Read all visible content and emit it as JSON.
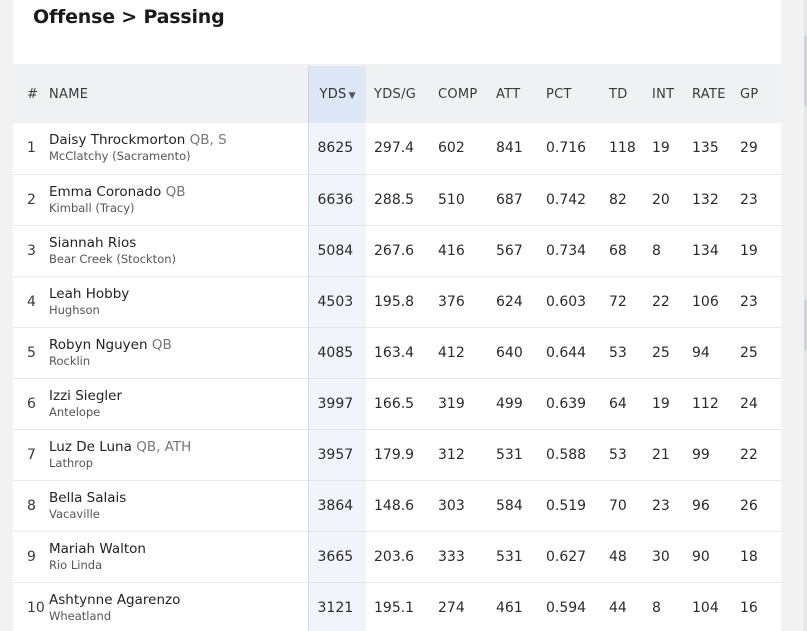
{
  "header": {
    "title": "Offense > Passing"
  },
  "table": {
    "columns": {
      "rank": "#",
      "name": "NAME",
      "yds": "YDS",
      "yds_sort_icon": "▼",
      "ydsg": "YDS/G",
      "comp": "COMP",
      "att": "ATT",
      "pct": "PCT",
      "td": "TD",
      "int": "INT",
      "rate": "RATE",
      "gp": "GP"
    },
    "rows": [
      {
        "rank": "1",
        "name": "Daisy Throckmorton",
        "pos": "QB, S",
        "school": "McClatchy (Sacramento)",
        "yds": "8625",
        "ydsg": "297.4",
        "comp": "602",
        "att": "841",
        "pct": "0.716",
        "td": "118",
        "int": "19",
        "rate": "135",
        "gp": "29"
      },
      {
        "rank": "2",
        "name": "Emma Coronado",
        "pos": "QB",
        "school": "Kimball (Tracy)",
        "yds": "6636",
        "ydsg": "288.5",
        "comp": "510",
        "att": "687",
        "pct": "0.742",
        "td": "82",
        "int": "20",
        "rate": "132",
        "gp": "23"
      },
      {
        "rank": "3",
        "name": "Siannah Rios",
        "pos": "",
        "school": "Bear Creek (Stockton)",
        "yds": "5084",
        "ydsg": "267.6",
        "comp": "416",
        "att": "567",
        "pct": "0.734",
        "td": "68",
        "int": "8",
        "rate": "134",
        "gp": "19"
      },
      {
        "rank": "4",
        "name": "Leah Hobby",
        "pos": "",
        "school": "Hughson",
        "yds": "4503",
        "ydsg": "195.8",
        "comp": "376",
        "att": "624",
        "pct": "0.603",
        "td": "72",
        "int": "22",
        "rate": "106",
        "gp": "23"
      },
      {
        "rank": "5",
        "name": "Robyn Nguyen",
        "pos": "QB",
        "school": "Rocklin",
        "yds": "4085",
        "ydsg": "163.4",
        "comp": "412",
        "att": "640",
        "pct": "0.644",
        "td": "53",
        "int": "25",
        "rate": "94",
        "gp": "25"
      },
      {
        "rank": "6",
        "name": "Izzi Siegler",
        "pos": "",
        "school": "Antelope",
        "yds": "3997",
        "ydsg": "166.5",
        "comp": "319",
        "att": "499",
        "pct": "0.639",
        "td": "64",
        "int": "19",
        "rate": "112",
        "gp": "24"
      },
      {
        "rank": "7",
        "name": "Luz De Luna",
        "pos": "QB, ATH",
        "school": "Lathrop",
        "yds": "3957",
        "ydsg": "179.9",
        "comp": "312",
        "att": "531",
        "pct": "0.588",
        "td": "53",
        "int": "21",
        "rate": "99",
        "gp": "22"
      },
      {
        "rank": "8",
        "name": "Bella Salais",
        "pos": "",
        "school": "Vacaville",
        "yds": "3864",
        "ydsg": "148.6",
        "comp": "303",
        "att": "584",
        "pct": "0.519",
        "td": "70",
        "int": "23",
        "rate": "96",
        "gp": "26"
      },
      {
        "rank": "9",
        "name": "Mariah Walton",
        "pos": "",
        "school": "Rio Linda",
        "yds": "3665",
        "ydsg": "203.6",
        "comp": "333",
        "att": "531",
        "pct": "0.627",
        "td": "48",
        "int": "30",
        "rate": "90",
        "gp": "18"
      },
      {
        "rank": "10",
        "name": "Ashtynne Agarenzo",
        "pos": "",
        "school": "Wheatland",
        "yds": "3121",
        "ydsg": "195.1",
        "comp": "274",
        "att": "461",
        "pct": "0.594",
        "td": "44",
        "int": "8",
        "rate": "104",
        "gp": "16"
      }
    ]
  },
  "colors": {
    "sorted_column": "#dde7f6",
    "sorted_cell": "#f1f5fb",
    "header_bg": "#f0f1f3",
    "position_text": "#777777"
  }
}
